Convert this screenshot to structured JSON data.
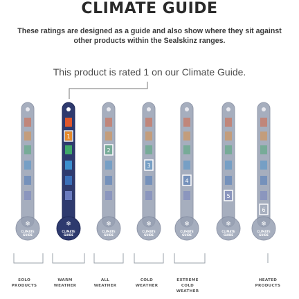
{
  "title": "CLIMATE GUIDE",
  "intro": "These ratings are designed as a guide and also show where they sit against other products within the Sealskinz ranges.",
  "rating_line": "This product is rated 1 on our Climate Guide.",
  "rating": 1,
  "badge_text": [
    "CLIMATE",
    "GUIDE"
  ],
  "highlight_numbers": [
    "1",
    "2",
    "3",
    "4",
    "5",
    "6"
  ],
  "categories": [
    {
      "line1": "SOLO",
      "line2": "PRODUCTS"
    },
    {
      "line1": "WARM",
      "line2": "WEATHER"
    },
    {
      "line1": "ALL",
      "line2": "WEATHER"
    },
    {
      "line1": "COLD",
      "line2": "WEATHER"
    },
    {
      "line1": "EXTREME",
      "line2": "COLD",
      "line3": "WEATHER"
    },
    {
      "line1": "HEATED",
      "line2": "PRODUCTS"
    }
  ],
  "colors": {
    "navy": "#2e3a6e",
    "light_tube": "#97a0b3",
    "c1": "#e0572b",
    "c2": "#e68a2c",
    "c3": "#3fa86a",
    "c4": "#3b8fcf",
    "c5": "#3a6fb8",
    "c6": "#6a7bbf",
    "highlight": "#ffffff"
  }
}
